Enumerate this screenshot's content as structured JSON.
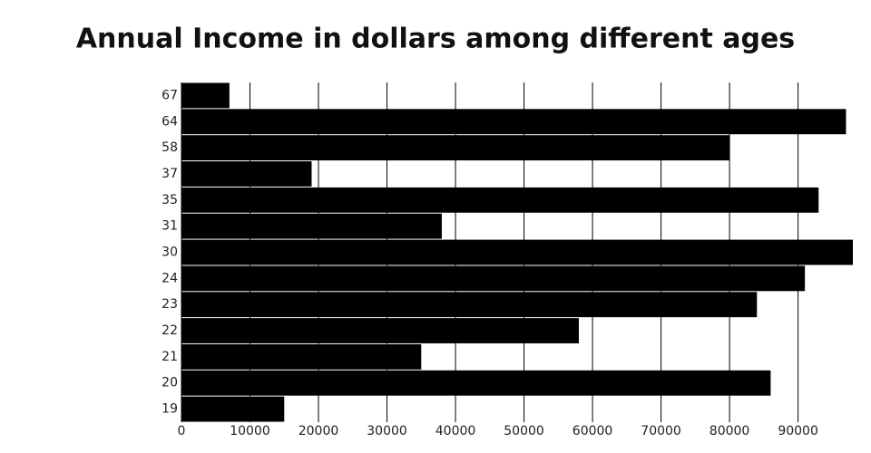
{
  "chart_data": {
    "type": "barh",
    "title": "Annual Income in dollars among different ages",
    "categories": [
      "19",
      "20",
      "21",
      "22",
      "23",
      "24",
      "30",
      "31",
      "35",
      "37",
      "58",
      "64",
      "67"
    ],
    "values": [
      15000,
      86000,
      35000,
      58000,
      84000,
      91000,
      98000,
      38000,
      93000,
      19000,
      80000,
      97000,
      7000
    ],
    "color": "#000000",
    "xlim": [
      0,
      98000
    ],
    "xticks": [
      0,
      10000,
      20000,
      30000,
      40000,
      50000,
      60000,
      70000,
      80000,
      90000
    ],
    "grid": true
  }
}
